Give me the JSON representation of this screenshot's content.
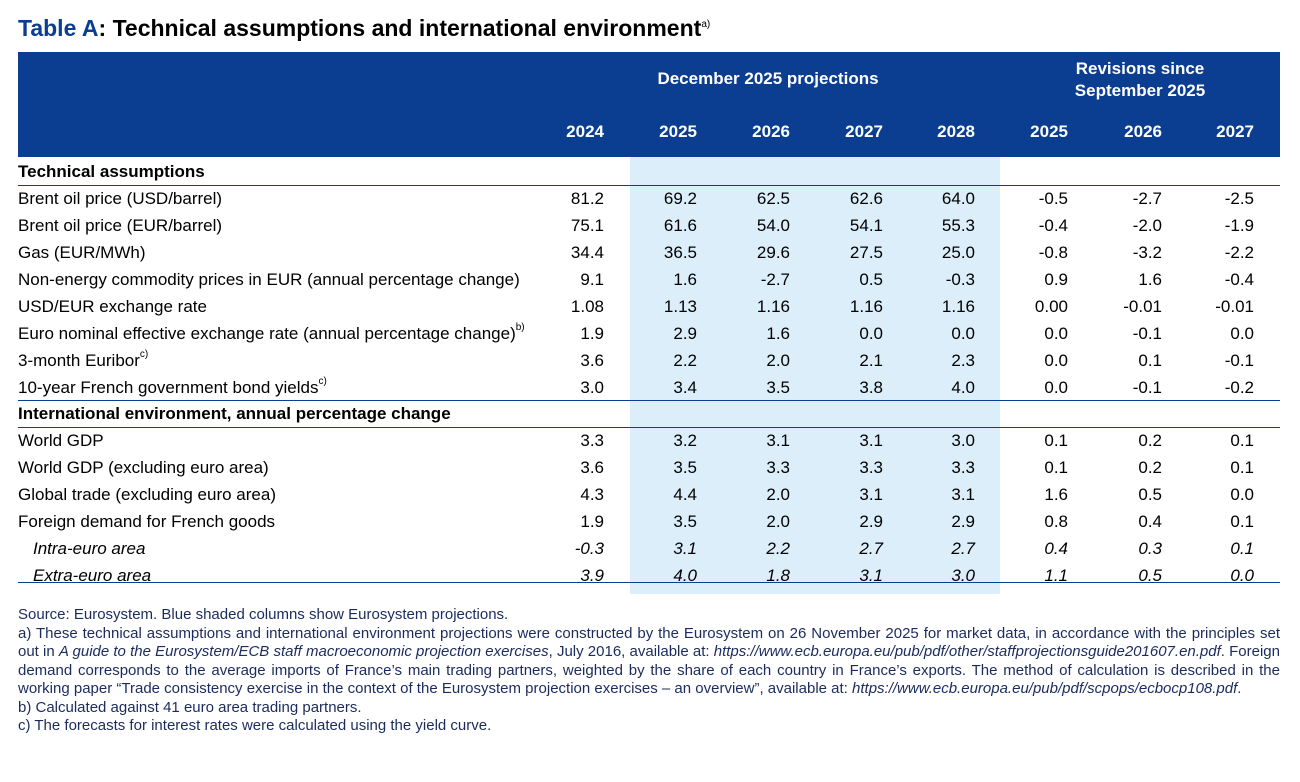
{
  "title": {
    "label": "Table A",
    "text": ": Technical assumptions and international environment",
    "note": "a)"
  },
  "header": {
    "groups": [
      "December 2025 projections",
      "Revisions since September 2025"
    ],
    "columns": [
      "2024",
      "2025",
      "2026",
      "2027",
      "2028",
      "2025",
      "2026",
      "2027"
    ]
  },
  "sections": [
    {
      "title": "Technical assumptions",
      "rows": [
        {
          "label": "Brent oil price (USD/barrel)",
          "values": [
            "81.2",
            "69.2",
            "62.5",
            "62.6",
            "64.0",
            "-0.5",
            "-2.7",
            "-2.5"
          ]
        },
        {
          "label": "Brent oil price (EUR/barrel)",
          "values": [
            "75.1",
            "61.6",
            "54.0",
            "54.1",
            "55.3",
            "-0.4",
            "-2.0",
            "-1.9"
          ]
        },
        {
          "label": "Gas (EUR/MWh)",
          "values": [
            "34.4",
            "36.5",
            "29.6",
            "27.5",
            "25.0",
            "-0.8",
            "-3.2",
            "-2.2"
          ]
        },
        {
          "label": "Non-energy commodity prices in EUR (annual percentage change)",
          "values": [
            "9.1",
            "1.6",
            "-2.7",
            "0.5",
            "-0.3",
            "0.9",
            "1.6",
            "-0.4"
          ]
        },
        {
          "label": "USD/EUR exchange rate",
          "values": [
            "1.08",
            "1.13",
            "1.16",
            "1.16",
            "1.16",
            "0.00",
            "-0.01",
            "-0.01"
          ]
        },
        {
          "label": "Euro nominal effective exchange rate (annual percentage change)",
          "note": "b)",
          "values": [
            "1.9",
            "2.9",
            "1.6",
            "0.0",
            "0.0",
            "0.0",
            "-0.1",
            "0.0"
          ]
        },
        {
          "label": "3-month Euribor",
          "note": "c)",
          "values": [
            "3.6",
            "2.2",
            "2.0",
            "2.1",
            "2.3",
            "0.0",
            "0.1",
            "-0.1"
          ]
        },
        {
          "label": "10-year French government bond yields",
          "note": "c)",
          "values": [
            "3.0",
            "3.4",
            "3.5",
            "3.8",
            "4.0",
            "0.0",
            "-0.1",
            "-0.2"
          ]
        }
      ]
    },
    {
      "title": "International environment, annual percentage change",
      "rows": [
        {
          "label": "World GDP",
          "values": [
            "3.3",
            "3.2",
            "3.1",
            "3.1",
            "3.0",
            "0.1",
            "0.2",
            "0.1"
          ]
        },
        {
          "label": "World GDP (excluding euro area)",
          "values": [
            "3.6",
            "3.5",
            "3.3",
            "3.3",
            "3.3",
            "0.1",
            "0.2",
            "0.1"
          ]
        },
        {
          "label": "Global trade (excluding euro area)",
          "values": [
            "4.3",
            "4.4",
            "2.0",
            "3.1",
            "3.1",
            "1.6",
            "0.5",
            "0.0"
          ]
        },
        {
          "label": "Foreign demand for French goods",
          "values": [
            "1.9",
            "3.5",
            "2.0",
            "2.9",
            "2.9",
            "0.8",
            "0.4",
            "0.1"
          ]
        },
        {
          "label": "Intra-euro area",
          "italic": true,
          "values": [
            "-0.3",
            "3.1",
            "2.2",
            "2.7",
            "2.7",
            "0.4",
            "0.3",
            "0.1"
          ]
        },
        {
          "label": "Extra-euro area",
          "italic": true,
          "values": [
            "3.9",
            "4.0",
            "1.8",
            "3.1",
            "3.0",
            "1.1",
            "0.5",
            "0.0"
          ]
        }
      ]
    }
  ],
  "notes": [
    {
      "parts": [
        {
          "text": "Source: Eurosystem. Blue shaded columns show Eurosystem projections.",
          "italic": false
        }
      ]
    },
    {
      "parts": [
        {
          "text": "a)  These technical assumptions and international environment projections were constructed by the Eurosystem on 26 November 2025 for market data, in accordance with the principles set out in ",
          "italic": false
        },
        {
          "text": "A guide to the Eurosystem/ECB staff macroeconomic projection exercises",
          "italic": true
        },
        {
          "text": ", July 2016, available at: ",
          "italic": false
        },
        {
          "text": "https://www.ecb.europa.eu/pub/pdf/other/staffprojectionsguide201607.en.pdf",
          "italic": true
        },
        {
          "text": ". Foreign demand corresponds to the average imports of France’s main trading partners, weighted by the share of each country in France’s exports. The method of calculation is described in the working paper “Trade consistency exercise in the context of the Eurosystem projection exercises – an overview”, available at: ",
          "italic": false
        },
        {
          "text": "https://www.ecb.europa.eu/pub/pdf/scpops/ecbocp108.pdf",
          "italic": true
        },
        {
          "text": ".",
          "italic": false
        }
      ]
    },
    {
      "parts": [
        {
          "text": "b)  Calculated against 41 euro area trading partners.",
          "italic": false
        }
      ]
    },
    {
      "parts": [
        {
          "text": "c)  The forecasts for interest rates were calculated using the yield curve.",
          "italic": false
        }
      ]
    }
  ]
}
